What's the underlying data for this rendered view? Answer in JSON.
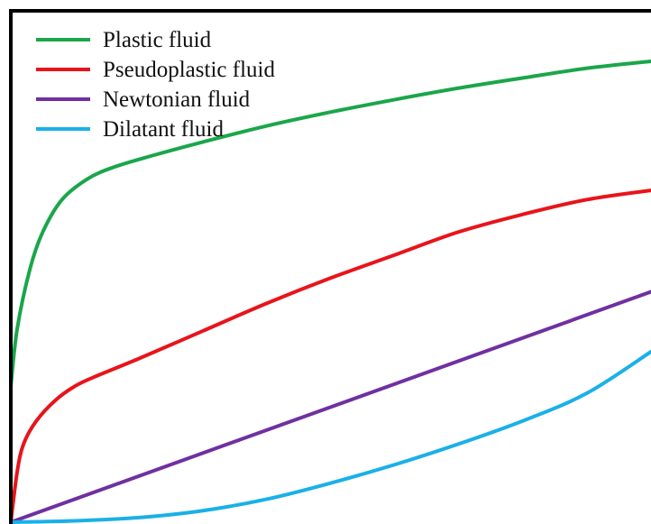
{
  "chart_data": {
    "type": "line",
    "title": "",
    "xlabel": "",
    "ylabel": "",
    "xlim": [
      0,
      1
    ],
    "ylim": [
      0,
      1
    ],
    "grid": false,
    "legend": "top-left",
    "series": [
      {
        "name": "Plastic fluid",
        "color": "#1aa64a",
        "x": [
          0,
          0.01,
          0.03,
          0.05,
          0.08,
          0.12,
          0.16,
          0.22,
          0.3,
          0.4,
          0.5,
          0.6,
          0.7,
          0.8,
          0.9,
          1.0
        ],
        "y": [
          0.295,
          0.42,
          0.55,
          0.63,
          0.7,
          0.745,
          0.77,
          0.795,
          0.825,
          0.86,
          0.89,
          0.917,
          0.942,
          0.964,
          0.985,
          1.0
        ]
      },
      {
        "name": "Pseudoplastic fluid",
        "color": "#e8141b",
        "x": [
          0,
          0.01,
          0.02,
          0.04,
          0.07,
          0.1,
          0.13,
          0.2,
          0.3,
          0.4,
          0.5,
          0.6,
          0.7,
          0.8,
          0.9,
          1.0
        ],
        "y": [
          0,
          0.11,
          0.17,
          0.22,
          0.265,
          0.295,
          0.315,
          0.355,
          0.415,
          0.475,
          0.53,
          0.58,
          0.63,
          0.668,
          0.7,
          0.72
        ]
      },
      {
        "name": "Newtonian fluid",
        "color": "#7030a0",
        "x": [
          0,
          1.0
        ],
        "y": [
          0,
          0.5
        ]
      },
      {
        "name": "Dilatant fluid",
        "color": "#1ab0e8",
        "x": [
          0,
          0.1,
          0.2,
          0.3,
          0.4,
          0.5,
          0.6,
          0.7,
          0.8,
          0.9,
          1.0
        ],
        "y": [
          0,
          0.003,
          0.01,
          0.025,
          0.05,
          0.085,
          0.125,
          0.17,
          0.22,
          0.28,
          0.37
        ]
      }
    ]
  }
}
